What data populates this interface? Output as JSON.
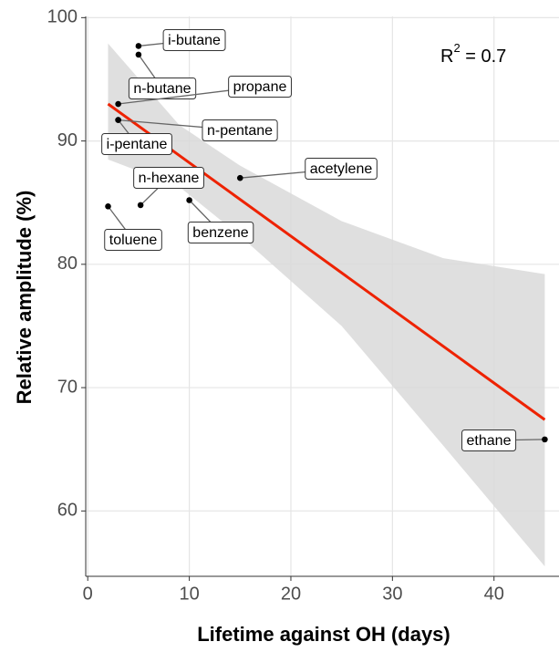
{
  "chart_data": {
    "type": "scatter",
    "x_label": "Lifetime against OH (days)",
    "y_label": "Relative amplitude (%)",
    "annotation": {
      "base": "R",
      "exponent": "2",
      "rest": " = 0.7"
    },
    "labels": [
      "i-butane",
      "n-butane",
      "propane",
      "n-pentane",
      "i-pentane",
      "n-hexane",
      "acetylene",
      "benzene",
      "toluene",
      "ethane"
    ],
    "x": [
      5,
      5,
      3,
      3,
      3,
      5.2,
      15,
      10,
      2,
      45
    ],
    "y": [
      97.7,
      97.0,
      93.0,
      91.7,
      91.7,
      84.8,
      87.0,
      85.2,
      84.7,
      65.8
    ],
    "color": "#000000",
    "fit": {
      "x": [
        2,
        45
      ],
      "y": [
        93.0,
        67.4
      ],
      "color": "#ee2200"
    },
    "band": {
      "x": [
        2,
        9,
        15,
        25,
        35,
        45
      ],
      "upper": [
        97.9,
        91.3,
        88.0,
        83.5,
        80.5,
        79.2
      ],
      "lower": [
        88.5,
        86.3,
        82.3,
        75.0,
        65.3,
        55.5
      ],
      "color": "#d9d9d9"
    },
    "xlim": [
      -0.2,
      46.4
    ],
    "ylim": [
      54.7,
      100.1
    ],
    "xticks": [
      0,
      10,
      20,
      30,
      40
    ],
    "yticks": [
      60,
      70,
      80,
      90,
      100
    ],
    "grid": true
  }
}
